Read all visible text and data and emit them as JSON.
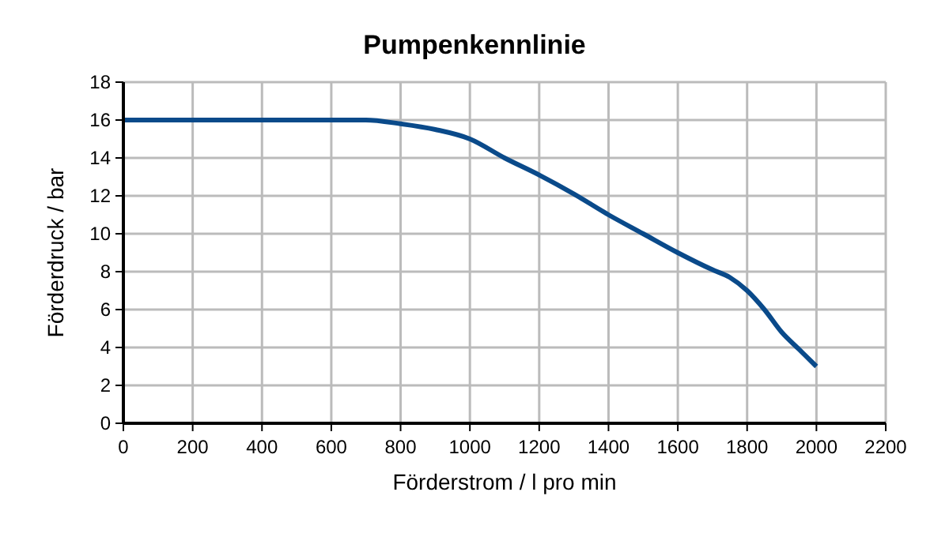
{
  "chart_data": {
    "type": "line",
    "title": "Pumpenkennlinie",
    "xlabel": "Förderstrom / l pro min",
    "ylabel": "Förderdruck / bar",
    "x": [
      0,
      200,
      400,
      600,
      700,
      800,
      900,
      1000,
      1100,
      1200,
      1300,
      1400,
      1500,
      1600,
      1700,
      1750,
      1800,
      1850,
      1900,
      1950,
      2000
    ],
    "series": [
      {
        "color": "#0a4a8a",
        "values": [
          16,
          16,
          16,
          16,
          16,
          15.8,
          15.5,
          15,
          14,
          13.1,
          12.1,
          11,
          10,
          9,
          8.1,
          7.7,
          7,
          6,
          4.8,
          3.9,
          3
        ]
      }
    ],
    "xlim": [
      0,
      2200
    ],
    "xticks": [
      0,
      200,
      400,
      600,
      800,
      1000,
      1200,
      1400,
      1600,
      1800,
      2000,
      2200
    ],
    "ylim": [
      0,
      18
    ],
    "yticks": [
      0,
      2,
      4,
      6,
      8,
      10,
      12,
      14,
      16,
      18
    ],
    "grid": true,
    "marker": "none",
    "line_style": "solid"
  }
}
